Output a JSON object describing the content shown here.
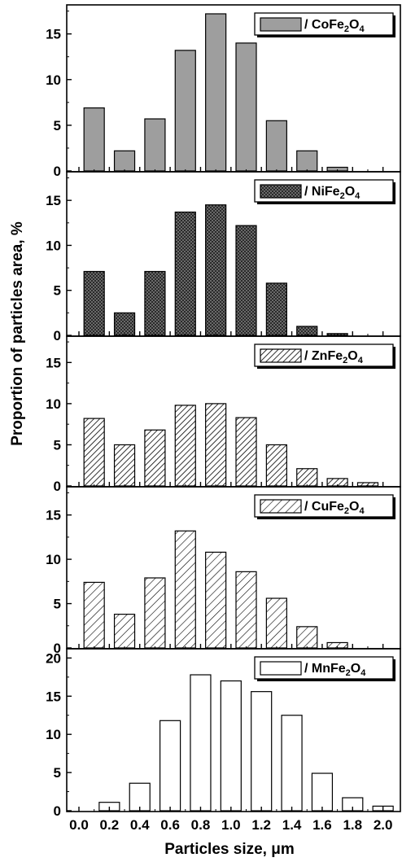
{
  "chart_data": {
    "type": "bar",
    "xlabel": "Particles size, μm",
    "ylabel": "Proportion of particles area, %",
    "x_ticks": [
      "0.0",
      "0.2",
      "0.4",
      "0.6",
      "0.8",
      "1.0",
      "1.2",
      "1.4",
      "1.6",
      "1.8",
      "2.0"
    ],
    "xlim": [
      0.0,
      2.05
    ],
    "panels": [
      {
        "legend": "/ CoFe2O4",
        "formula": {
          "prefix": "/ CoFe",
          "sub1": "2",
          "mid": "O",
          "sub2": "4"
        },
        "fill": "solid-gray",
        "fill_color": "#9e9e9e",
        "ylim": [
          0,
          18
        ],
        "y_ticks": [
          "0",
          "5",
          "10",
          "15"
        ],
        "x": [
          0.1,
          0.3,
          0.5,
          0.7,
          0.9,
          1.1,
          1.3,
          1.5,
          1.7
        ],
        "values": [
          6.9,
          2.2,
          5.7,
          13.2,
          17.2,
          14.0,
          5.5,
          2.2,
          0.4
        ]
      },
      {
        "legend": "/ NiFe2O4",
        "formula": {
          "prefix": "/ NiFe",
          "sub1": "2",
          "mid": "O",
          "sub2": "4"
        },
        "fill": "crosshatch",
        "fill_color": "#4a4a4a",
        "ylim": [
          0,
          18
        ],
        "y_ticks": [
          "0",
          "5",
          "10",
          "15"
        ],
        "x": [
          0.1,
          0.3,
          0.5,
          0.7,
          0.9,
          1.1,
          1.3,
          1.5,
          1.7
        ],
        "values": [
          7.1,
          2.5,
          7.1,
          13.7,
          14.5,
          12.2,
          5.8,
          1.0,
          0.2
        ]
      },
      {
        "legend": "/ ZnFe2O4",
        "formula": {
          "prefix": "/ ZnFe",
          "sub1": "2",
          "mid": "O",
          "sub2": "4"
        },
        "fill": "dense-diagonal",
        "fill_color": "#ffffff",
        "ylim": [
          0,
          18
        ],
        "y_ticks": [
          "0",
          "5",
          "10",
          "15"
        ],
        "x": [
          0.1,
          0.3,
          0.5,
          0.7,
          0.9,
          1.1,
          1.3,
          1.5,
          1.7,
          1.9
        ],
        "values": [
          8.2,
          5.0,
          6.8,
          9.8,
          10.0,
          8.3,
          5.0,
          2.1,
          0.9,
          0.4
        ]
      },
      {
        "legend": "/ CuFe2O4",
        "formula": {
          "prefix": "/ CuFe",
          "sub1": "2",
          "mid": "O",
          "sub2": "4"
        },
        "fill": "sparse-diagonal",
        "fill_color": "#ffffff",
        "ylim": [
          0,
          18
        ],
        "y_ticks": [
          "0",
          "5",
          "10",
          "15"
        ],
        "x": [
          0.1,
          0.3,
          0.5,
          0.7,
          0.9,
          1.1,
          1.3,
          1.5,
          1.7
        ],
        "values": [
          7.4,
          3.8,
          7.9,
          13.2,
          10.8,
          8.6,
          5.6,
          2.4,
          0.6
        ]
      },
      {
        "legend": "/ MnFe2O4",
        "formula": {
          "prefix": "/ MnFe",
          "sub1": "2",
          "mid": "O",
          "sub2": "4"
        },
        "fill": "white",
        "fill_color": "#ffffff",
        "ylim": [
          0,
          21
        ],
        "y_ticks": [
          "0",
          "5",
          "10",
          "15",
          "20"
        ],
        "x": [
          0.2,
          0.4,
          0.6,
          0.8,
          1.0,
          1.2,
          1.4,
          1.6,
          1.8,
          2.0
        ],
        "values": [
          1.1,
          3.6,
          11.8,
          17.8,
          17.0,
          15.6,
          12.5,
          4.9,
          1.7,
          0.6
        ]
      }
    ]
  }
}
